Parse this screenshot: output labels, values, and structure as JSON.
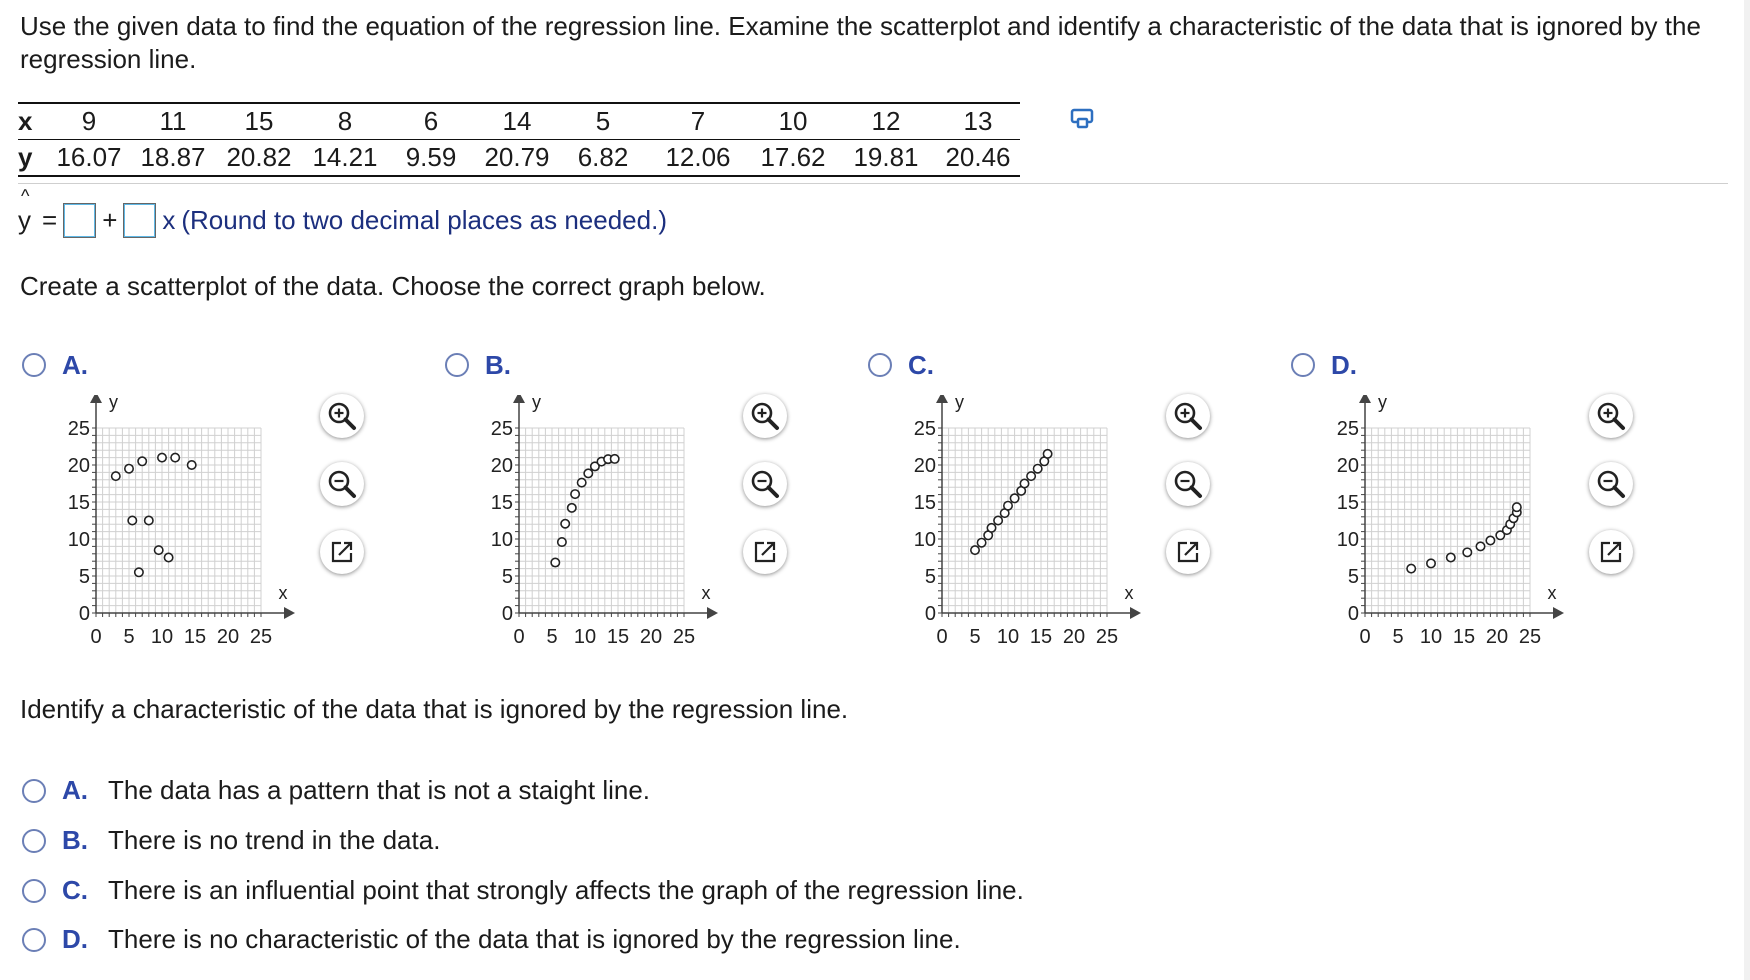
{
  "prompt": "Use the given data to find the equation of the regression line. Examine the scatterplot and identify a characteristic of the data that is ignored by the regression line.",
  "data_table": {
    "x_label": "x",
    "y_label": "y",
    "x": [
      "9",
      "11",
      "15",
      "8",
      "6",
      "14",
      "5",
      "7",
      "10",
      "12",
      "13"
    ],
    "y": [
      "16.07",
      "18.87",
      "20.82",
      "14.21",
      "9.59",
      "20.79",
      "6.82",
      "12.06",
      "17.62",
      "19.81",
      "20.46"
    ]
  },
  "equation": {
    "lhs": "y",
    "hat": "^",
    "equals": "=",
    "plus": "+",
    "x_term": "x",
    "note": "(Round to two decimal places as needed.)",
    "intercept_value": "",
    "slope_value": ""
  },
  "scatter_question": "Create a scatterplot of the data. Choose the correct graph below.",
  "graph_options": [
    {
      "label": "A.",
      "selected": false
    },
    {
      "label": "B.",
      "selected": false
    },
    {
      "label": "C.",
      "selected": false
    },
    {
      "label": "D.",
      "selected": false
    }
  ],
  "icons": [
    "zoom-in-icon",
    "zoom-out-icon",
    "open-window-icon",
    "copy-table-icon"
  ],
  "colors": {
    "accent": "#2d48a8",
    "radio_border": "#6b7fb6",
    "navy_text": "#1c2f7e",
    "grid": "#d0d0d0"
  },
  "chart_data": [
    {
      "type": "scatter",
      "xlabel": "x",
      "ylabel": "y",
      "xlim": [
        0,
        25
      ],
      "ylim": [
        0,
        25
      ],
      "xticks": [
        "0",
        "5",
        "10",
        "15",
        "20",
        "25"
      ],
      "yticks": [
        "0",
        "5",
        "10",
        "15",
        "20",
        "25"
      ],
      "points": [
        [
          6.5,
          5.5
        ],
        [
          9.5,
          8.5
        ],
        [
          11,
          7.5
        ],
        [
          5.5,
          12.5
        ],
        [
          8,
          12.5
        ],
        [
          3,
          18.5
        ],
        [
          5,
          19.5
        ],
        [
          7,
          20.5
        ],
        [
          10,
          21
        ],
        [
          12,
          21
        ],
        [
          14.5,
          20
        ]
      ]
    },
    {
      "type": "scatter",
      "xlabel": "x",
      "ylabel": "y",
      "xlim": [
        0,
        25
      ],
      "ylim": [
        0,
        25
      ],
      "xticks": [
        "0",
        "5",
        "10",
        "15",
        "20",
        "25"
      ],
      "yticks": [
        "0",
        "5",
        "10",
        "15",
        "20",
        "25"
      ],
      "points": [
        [
          5.5,
          6.82
        ],
        [
          6.5,
          9.59
        ],
        [
          7,
          12.06
        ],
        [
          8,
          14.21
        ],
        [
          8.5,
          16.07
        ],
        [
          9.5,
          17.62
        ],
        [
          10.5,
          18.87
        ],
        [
          11.5,
          19.81
        ],
        [
          12.5,
          20.46
        ],
        [
          13.5,
          20.79
        ],
        [
          14.5,
          20.82
        ]
      ]
    },
    {
      "type": "scatter",
      "xlabel": "x",
      "ylabel": "y",
      "xlim": [
        0,
        25
      ],
      "ylim": [
        0,
        25
      ],
      "xticks": [
        "0",
        "5",
        "10",
        "15",
        "20",
        "25"
      ],
      "yticks": [
        "0",
        "5",
        "10",
        "15",
        "20",
        "25"
      ],
      "points": [
        [
          5,
          8.5
        ],
        [
          6,
          9.5
        ],
        [
          7,
          10.5
        ],
        [
          7.5,
          11.5
        ],
        [
          8.5,
          12.5
        ],
        [
          9.5,
          13.5
        ],
        [
          10,
          14.5
        ],
        [
          11,
          15.5
        ],
        [
          12,
          16.5
        ],
        [
          12.5,
          17.5
        ],
        [
          13.5,
          18.5
        ],
        [
          14.5,
          19.5
        ],
        [
          15.5,
          20.5
        ],
        [
          16,
          21.5
        ]
      ]
    },
    {
      "type": "scatter",
      "xlabel": "x",
      "ylabel": "y",
      "xlim": [
        0,
        25
      ],
      "ylim": [
        0,
        25
      ],
      "xticks": [
        "0",
        "5",
        "10",
        "15",
        "20",
        "25"
      ],
      "yticks": [
        "0",
        "5",
        "10",
        "15",
        "20",
        "25"
      ],
      "points": [
        [
          7,
          6
        ],
        [
          10,
          6.7
        ],
        [
          13,
          7.5
        ],
        [
          15.5,
          8.2
        ],
        [
          17.5,
          9
        ],
        [
          19,
          9.8
        ],
        [
          20.5,
          10.5
        ],
        [
          21.5,
          11.2
        ],
        [
          22,
          12
        ],
        [
          22.5,
          12.8
        ],
        [
          23,
          13.6
        ],
        [
          23,
          14.3
        ]
      ]
    }
  ],
  "characteristic_question": "Identify a characteristic of the data that is ignored by the regression line.",
  "characteristic_options": [
    {
      "label": "A.",
      "text": "The data has a pattern that is not a staight line."
    },
    {
      "label": "B.",
      "text": "There is no trend in the data."
    },
    {
      "label": "C.",
      "text": "There is an influential point that strongly affects the graph of the regression line."
    },
    {
      "label": "D.",
      "text": "There is no characteristic of the data that is ignored by the regression line."
    }
  ]
}
